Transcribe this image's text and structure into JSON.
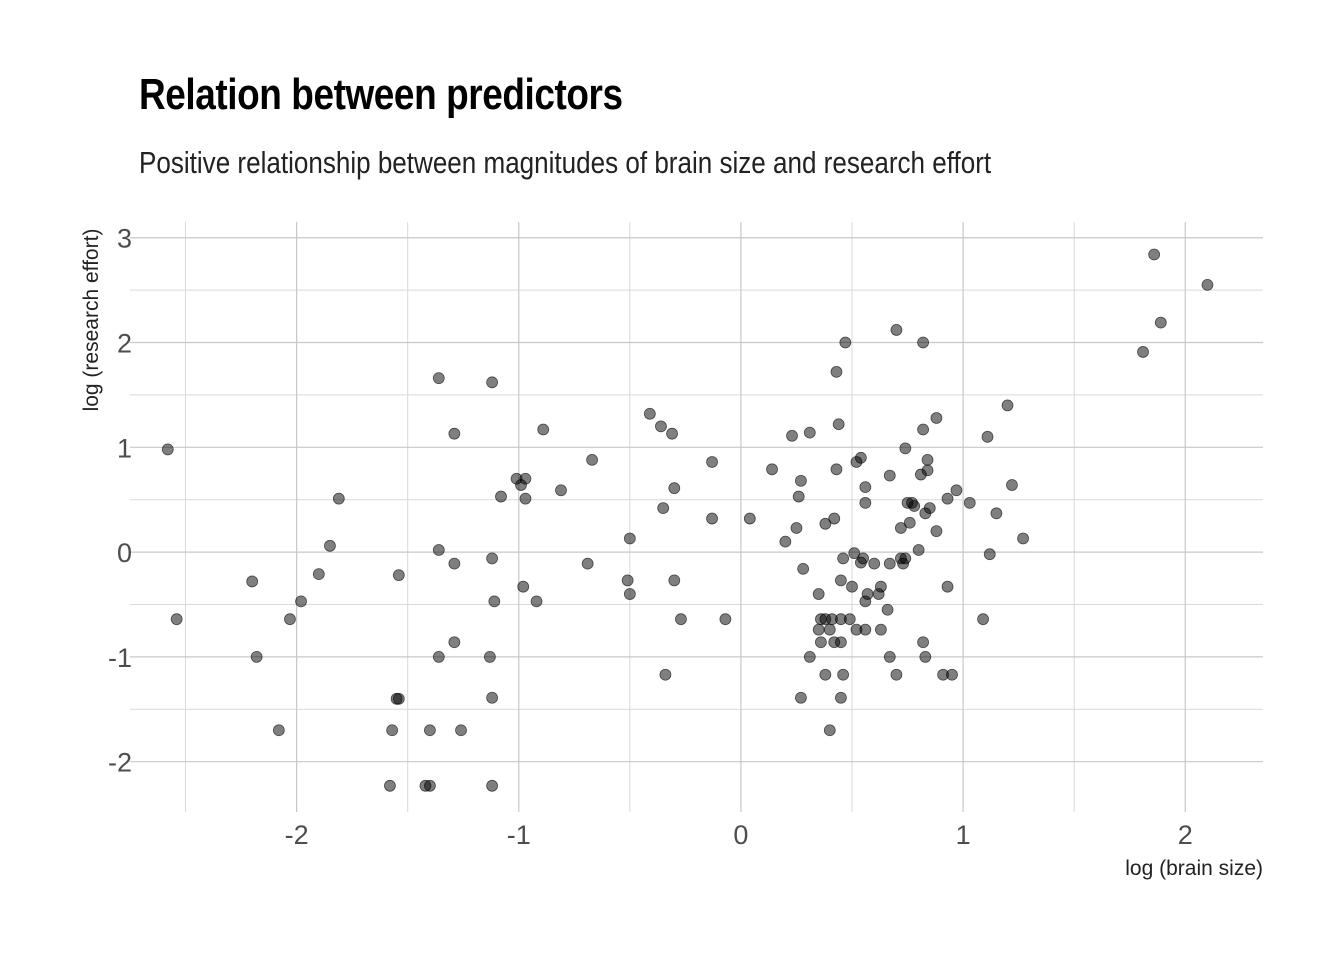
{
  "chart_data": {
    "type": "scatter",
    "title": "Relation between predictors",
    "subtitle": "Positive relationship between magnitudes of brain size and research effort",
    "xlabel": "log (brain size)",
    "ylabel": "log (research effort)",
    "xlim": [
      -2.75,
      2.35
    ],
    "ylim": [
      -2.48,
      3.15
    ],
    "x_ticks": [
      -2,
      -1,
      0,
      1,
      2
    ],
    "y_ticks": [
      -2,
      -1,
      0,
      1,
      2,
      3
    ],
    "grid": true,
    "point_color": "#000000",
    "point_opacity": 0.5,
    "points": [
      [
        -2.58,
        0.98
      ],
      [
        -2.54,
        -0.64
      ],
      [
        -2.2,
        -0.28
      ],
      [
        -2.18,
        -1.0
      ],
      [
        -2.08,
        -1.7
      ],
      [
        -2.03,
        -0.64
      ],
      [
        -1.98,
        -0.47
      ],
      [
        -1.9,
        -0.21
      ],
      [
        -1.85,
        0.06
      ],
      [
        -1.81,
        0.51
      ],
      [
        -1.58,
        -2.23
      ],
      [
        -1.57,
        -1.7
      ],
      [
        -1.54,
        -0.22
      ],
      [
        -1.55,
        -1.4
      ],
      [
        -1.54,
        -1.4
      ],
      [
        -1.42,
        -2.23
      ],
      [
        -1.4,
        -2.23
      ],
      [
        -1.4,
        -1.7
      ],
      [
        -1.36,
        1.66
      ],
      [
        -1.36,
        0.02
      ],
      [
        -1.36,
        -1.0
      ],
      [
        -1.29,
        1.13
      ],
      [
        -1.29,
        -0.11
      ],
      [
        -1.29,
        -0.86
      ],
      [
        -1.26,
        -1.7
      ],
      [
        -1.13,
        -1.0
      ],
      [
        -1.12,
        1.62
      ],
      [
        -1.12,
        -0.06
      ],
      [
        -1.11,
        -0.47
      ],
      [
        -1.12,
        -1.39
      ],
      [
        -1.12,
        -2.23
      ],
      [
        -1.08,
        0.53
      ],
      [
        -1.01,
        0.7
      ],
      [
        -0.99,
        0.64
      ],
      [
        -0.97,
        0.7
      ],
      [
        -0.97,
        0.51
      ],
      [
        -0.98,
        -0.33
      ],
      [
        -0.92,
        -0.47
      ],
      [
        -0.89,
        1.17
      ],
      [
        -0.81,
        0.59
      ],
      [
        -0.69,
        -0.11
      ],
      [
        -0.67,
        0.88
      ],
      [
        -0.51,
        -0.27
      ],
      [
        -0.5,
        -0.4
      ],
      [
        -0.5,
        0.13
      ],
      [
        -0.41,
        1.32
      ],
      [
        -0.36,
        1.2
      ],
      [
        -0.35,
        0.42
      ],
      [
        -0.34,
        -1.17
      ],
      [
        -0.31,
        1.13
      ],
      [
        -0.3,
        0.61
      ],
      [
        -0.3,
        -0.27
      ],
      [
        -0.27,
        -0.64
      ],
      [
        -0.13,
        0.86
      ],
      [
        -0.13,
        0.32
      ],
      [
        -0.07,
        -0.64
      ],
      [
        0.04,
        0.32
      ],
      [
        0.14,
        0.79
      ],
      [
        0.2,
        0.1
      ],
      [
        0.23,
        1.11
      ],
      [
        0.25,
        0.23
      ],
      [
        0.26,
        0.53
      ],
      [
        0.27,
        0.68
      ],
      [
        0.28,
        -0.16
      ],
      [
        0.27,
        -1.39
      ],
      [
        0.31,
        1.14
      ],
      [
        0.31,
        -1.0
      ],
      [
        0.35,
        -0.4
      ],
      [
        0.35,
        -0.74
      ],
      [
        0.36,
        -0.64
      ],
      [
        0.36,
        -0.86
      ],
      [
        0.38,
        0.27
      ],
      [
        0.38,
        -0.64
      ],
      [
        0.38,
        -1.17
      ],
      [
        0.4,
        -0.74
      ],
      [
        0.4,
        -1.7
      ],
      [
        0.41,
        -0.64
      ],
      [
        0.42,
        0.32
      ],
      [
        0.42,
        -0.86
      ],
      [
        0.43,
        0.79
      ],
      [
        0.43,
        1.72
      ],
      [
        0.44,
        1.22
      ],
      [
        0.45,
        -0.27
      ],
      [
        0.45,
        -0.64
      ],
      [
        0.45,
        -0.86
      ],
      [
        0.45,
        -1.39
      ],
      [
        0.46,
        -0.06
      ],
      [
        0.46,
        -1.17
      ],
      [
        0.47,
        2.0
      ],
      [
        0.49,
        -0.64
      ],
      [
        0.5,
        -0.33
      ],
      [
        0.51,
        -0.01
      ],
      [
        0.52,
        0.86
      ],
      [
        0.52,
        -0.74
      ],
      [
        0.54,
        0.9
      ],
      [
        0.54,
        -0.1
      ],
      [
        0.55,
        -0.06
      ],
      [
        0.56,
        0.47
      ],
      [
        0.56,
        0.62
      ],
      [
        0.56,
        -0.47
      ],
      [
        0.56,
        -0.74
      ],
      [
        0.57,
        -0.4
      ],
      [
        0.6,
        -0.11
      ],
      [
        0.62,
        -0.4
      ],
      [
        0.63,
        -0.33
      ],
      [
        0.63,
        -0.74
      ],
      [
        0.66,
        -0.55
      ],
      [
        0.67,
        0.73
      ],
      [
        0.67,
        -0.11
      ],
      [
        0.67,
        -1.0
      ],
      [
        0.7,
        2.12
      ],
      [
        0.7,
        -1.17
      ],
      [
        0.72,
        -0.06
      ],
      [
        0.72,
        0.23
      ],
      [
        0.73,
        -0.11
      ],
      [
        0.74,
        -0.06
      ],
      [
        0.74,
        0.99
      ],
      [
        0.75,
        0.47
      ],
      [
        0.76,
        0.28
      ],
      [
        0.77,
        0.47
      ],
      [
        0.78,
        0.44
      ],
      [
        0.8,
        0.02
      ],
      [
        0.81,
        0.74
      ],
      [
        0.82,
        1.17
      ],
      [
        0.82,
        -0.86
      ],
      [
        0.82,
        2.0
      ],
      [
        0.83,
        0.37
      ],
      [
        0.83,
        -1.0
      ],
      [
        0.84,
        0.78
      ],
      [
        0.84,
        0.88
      ],
      [
        0.85,
        0.42
      ],
      [
        0.88,
        0.2
      ],
      [
        0.88,
        1.28
      ],
      [
        0.91,
        -1.17
      ],
      [
        0.93,
        0.51
      ],
      [
        0.93,
        -0.33
      ],
      [
        0.95,
        -1.17
      ],
      [
        0.97,
        0.59
      ],
      [
        1.03,
        0.47
      ],
      [
        1.09,
        -0.64
      ],
      [
        1.11,
        1.1
      ],
      [
        1.12,
        -0.02
      ],
      [
        1.15,
        0.37
      ],
      [
        1.2,
        1.4
      ],
      [
        1.22,
        0.64
      ],
      [
        1.27,
        0.13
      ],
      [
        1.81,
        1.91
      ],
      [
        1.86,
        2.84
      ],
      [
        1.89,
        2.19
      ],
      [
        2.1,
        2.55
      ]
    ]
  }
}
